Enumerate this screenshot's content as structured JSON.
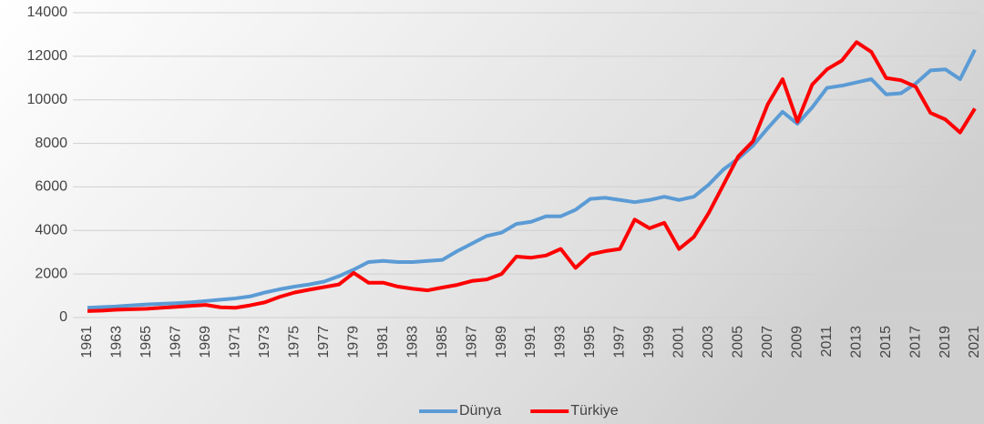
{
  "chart_data": {
    "type": "line",
    "x": [
      1961,
      1962,
      1963,
      1964,
      1965,
      1966,
      1967,
      1968,
      1969,
      1970,
      1971,
      1972,
      1973,
      1974,
      1975,
      1976,
      1977,
      1978,
      1979,
      1980,
      1981,
      1982,
      1983,
      1984,
      1985,
      1986,
      1987,
      1988,
      1989,
      1990,
      1991,
      1992,
      1993,
      1994,
      1995,
      1996,
      1997,
      1998,
      1999,
      2000,
      2001,
      2002,
      2003,
      2004,
      2005,
      2006,
      2007,
      2008,
      2009,
      2010,
      2011,
      2012,
      2013,
      2014,
      2015,
      2016,
      2017,
      2018,
      2019,
      2020,
      2021
    ],
    "series": [
      {
        "name": "Dünya",
        "color": "#5b9bd5",
        "values": [
          450,
          480,
          510,
          560,
          600,
          630,
          660,
          700,
          760,
          820,
          880,
          970,
          1150,
          1300,
          1420,
          1520,
          1650,
          1900,
          2200,
          2550,
          2600,
          2550,
          2550,
          2600,
          2650,
          3050,
          3400,
          3750,
          3900,
          4300,
          4400,
          4650,
          4650,
          4950,
          5450,
          5500,
          5400,
          5300,
          5400,
          5550,
          5400,
          5550,
          6100,
          6800,
          7300,
          7900,
          8700,
          9450,
          8900,
          9650,
          10550,
          10650,
          10800,
          10950,
          10250,
          10300,
          10750,
          11350,
          11400,
          10950,
          12300
        ]
      },
      {
        "name": "Türkiye",
        "color": "#ff0000",
        "values": [
          300,
          320,
          360,
          380,
          400,
          450,
          490,
          540,
          580,
          470,
          450,
          560,
          700,
          950,
          1150,
          1280,
          1400,
          1520,
          2050,
          1600,
          1600,
          1420,
          1320,
          1250,
          1380,
          1500,
          1680,
          1750,
          2000,
          2800,
          2750,
          2850,
          3150,
          2280,
          2900,
          3050,
          3150,
          4500,
          4100,
          4350,
          3150,
          3700,
          4800,
          6100,
          7400,
          8100,
          9800,
          10950,
          9000,
          10700,
          11400,
          11800,
          12650,
          12200,
          11000,
          10900,
          10600,
          9400,
          9100,
          8500,
          9600
        ]
      }
    ],
    "xlim": [
      1961,
      2021
    ],
    "xticks": [
      1961,
      1963,
      1965,
      1967,
      1969,
      1971,
      1973,
      1975,
      1977,
      1979,
      1981,
      1983,
      1985,
      1987,
      1989,
      1991,
      1993,
      1995,
      1997,
      1999,
      2001,
      2003,
      2005,
      2007,
      2009,
      2011,
      2013,
      2015,
      2017,
      2019,
      2021
    ],
    "ylim": [
      0,
      14000
    ],
    "yticks": [
      0,
      2000,
      4000,
      6000,
      8000,
      10000,
      12000,
      14000
    ],
    "grid": true,
    "legend": "bottom"
  }
}
